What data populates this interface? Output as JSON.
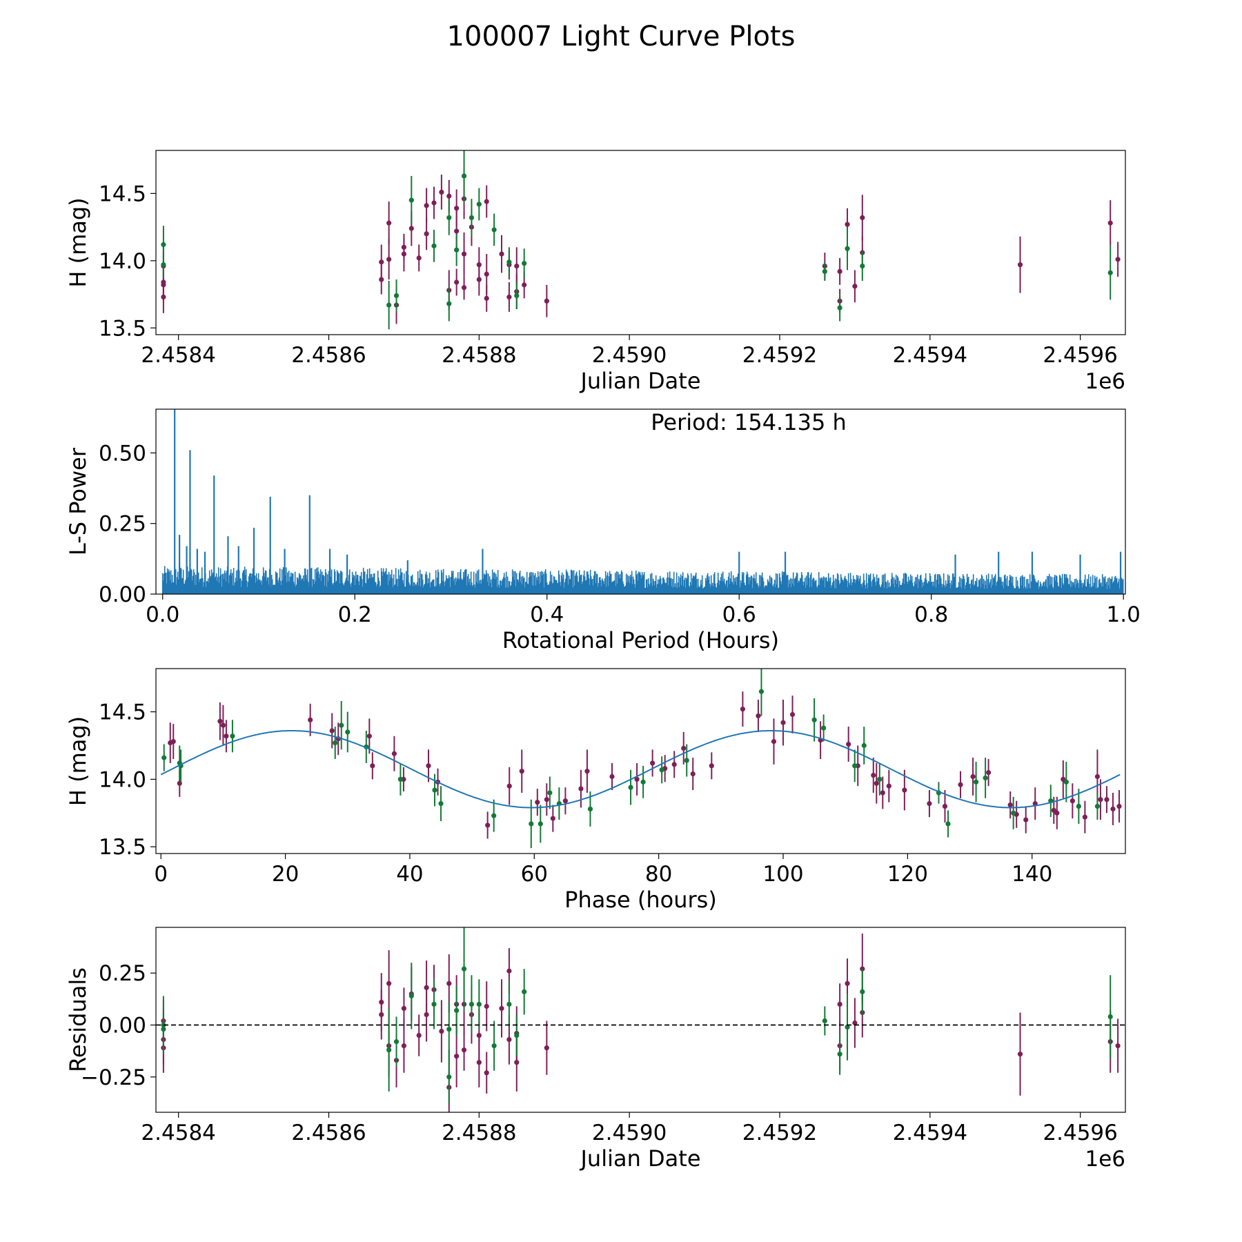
{
  "figure": {
    "title": "100007 Light Curve Plots",
    "colors": {
      "band_a": "#7f1f57",
      "band_b": "#137a36",
      "power": "#1f77b4",
      "fit": "#1f77b4",
      "zero_line": "#000000",
      "axes": "#000000"
    }
  },
  "chart_data": [
    {
      "id": "lightcurve",
      "type": "scatter",
      "title": "",
      "xlabel": "Julian Date",
      "ylabel": "H (mag)",
      "offset_label": "1e6",
      "xlim": [
        2.45837,
        2.45966
      ],
      "ylim": [
        13.45,
        14.82
      ],
      "xticks": [
        2.4584,
        2.4586,
        2.4588,
        2.459,
        2.4592,
        2.4594,
        2.4596
      ],
      "xtick_labels": [
        "2.4584",
        "2.4586",
        "2.4588",
        "2.4590",
        "2.4592",
        "2.4594",
        "2.4596"
      ],
      "yticks": [
        13.5,
        14.0,
        14.5
      ],
      "ytick_labels": [
        "13.5",
        "14.0",
        "14.5"
      ],
      "series": [
        {
          "name": "band_a",
          "x": [
            2.45838,
            2.45838,
            2.45838,
            2.45838,
            2.45867,
            2.45867,
            2.45868,
            2.45868,
            2.45869,
            2.4587,
            2.4587,
            2.45871,
            2.45872,
            2.45873,
            2.45873,
            2.45874,
            2.45875,
            2.45876,
            2.45876,
            2.45877,
            2.45877,
            2.45877,
            2.45878,
            2.45878,
            2.45878,
            2.45879,
            2.4588,
            2.4588,
            2.45881,
            2.45881,
            2.45881,
            2.45883,
            2.45884,
            2.45884,
            2.45885,
            2.45885,
            2.45886,
            2.45889,
            2.45926,
            2.45928,
            2.45928,
            2.45929,
            2.4593,
            2.45931,
            2.45931,
            2.45952,
            2.45964,
            2.45965
          ],
          "y": [
            13.96,
            13.73,
            13.84,
            13.82,
            13.99,
            13.86,
            14.28,
            14.01,
            13.67,
            14.1,
            14.05,
            14.24,
            14.02,
            14.2,
            14.41,
            14.43,
            14.51,
            14.48,
            13.78,
            14.39,
            14.22,
            13.84,
            14.46,
            14.05,
            13.8,
            14.25,
            13.97,
            13.86,
            14.44,
            13.72,
            13.9,
            14.05,
            13.97,
            13.73,
            13.77,
            13.96,
            13.82,
            13.7,
            13.96,
            13.92,
            13.7,
            14.27,
            13.81,
            14.32,
            14.06,
            13.97,
            14.28,
            14.01
          ],
          "err": [
            0.15,
            0.12,
            0.1,
            0.12,
            0.13,
            0.11,
            0.16,
            0.15,
            0.14,
            0.1,
            0.13,
            0.13,
            0.1,
            0.12,
            0.13,
            0.12,
            0.13,
            0.12,
            0.15,
            0.14,
            0.15,
            0.1,
            0.15,
            0.16,
            0.09,
            0.14,
            0.13,
            0.12,
            0.12,
            0.1,
            0.15,
            0.14,
            0.11,
            0.11,
            0.13,
            0.14,
            0.1,
            0.12,
            0.1,
            0.1,
            0.09,
            0.12,
            0.12,
            0.17,
            0.12,
            0.21,
            0.17,
            0.13
          ]
        },
        {
          "name": "band_b",
          "x": [
            2.45838,
            2.45838,
            2.45868,
            2.45869,
            2.45871,
            2.45874,
            2.45876,
            2.45876,
            2.45877,
            2.45878,
            2.45879,
            2.4588,
            2.45882,
            2.45884,
            2.45885,
            2.45886,
            2.45926,
            2.45928,
            2.45929,
            2.45931,
            2.45964
          ],
          "y": [
            14.12,
            13.97,
            13.67,
            13.74,
            14.45,
            14.11,
            14.32,
            13.68,
            14.08,
            14.63,
            14.32,
            14.42,
            14.23,
            13.99,
            13.74,
            13.98,
            13.92,
            13.65,
            14.09,
            13.96,
            13.91
          ],
          "err": [
            0.14,
            0.1,
            0.18,
            0.12,
            0.18,
            0.12,
            0.13,
            0.13,
            0.12,
            0.2,
            0.14,
            0.12,
            0.12,
            0.11,
            0.1,
            0.11,
            0.07,
            0.1,
            0.16,
            0.11,
            0.2
          ]
        }
      ]
    },
    {
      "id": "periodogram",
      "type": "line",
      "title": "",
      "xlabel": "Rotational Period (Hours)",
      "ylabel": "L-S Power",
      "annotation": "Period: 154.135 h",
      "xlim": [
        -0.007,
        1.002
      ],
      "ylim": [
        0.0,
        0.655
      ],
      "xticks": [
        0.0,
        0.2,
        0.4,
        0.6,
        0.8,
        1.0
      ],
      "xtick_labels": [
        "0.0",
        "0.2",
        "0.4",
        "0.6",
        "0.8",
        "1.0"
      ],
      "yticks": [
        0.0,
        0.25,
        0.5
      ],
      "ytick_labels": [
        "0.00",
        "0.25",
        "0.50"
      ],
      "series": [
        {
          "name": "L-S power",
          "baseline": {
            "x0": 0.0,
            "x1": 1.0,
            "start_level": 0.1,
            "end_level": 0.07
          },
          "peaks": [
            {
              "x": 0.0125,
              "y": 0.655
            },
            {
              "x": 0.0285,
              "y": 0.51
            },
            {
              "x": 0.0535,
              "y": 0.42
            },
            {
              "x": 0.112,
              "y": 0.345
            },
            {
              "x": 0.153,
              "y": 0.35
            },
            {
              "x": 0.095,
              "y": 0.235
            },
            {
              "x": 0.068,
              "y": 0.205
            },
            {
              "x": 0.0175,
              "y": 0.21
            },
            {
              "x": 0.025,
              "y": 0.17
            },
            {
              "x": 0.036,
              "y": 0.16
            },
            {
              "x": 0.044,
              "y": 0.15
            },
            {
              "x": 0.079,
              "y": 0.17
            },
            {
              "x": 0.127,
              "y": 0.16
            },
            {
              "x": 0.174,
              "y": 0.16
            },
            {
              "x": 0.192,
              "y": 0.14
            },
            {
              "x": 0.255,
              "y": 0.12
            },
            {
              "x": 0.333,
              "y": 0.16
            },
            {
              "x": 0.6,
              "y": 0.15
            },
            {
              "x": 0.648,
              "y": 0.15
            },
            {
              "x": 0.825,
              "y": 0.14
            },
            {
              "x": 0.87,
              "y": 0.15
            },
            {
              "x": 0.905,
              "y": 0.15
            },
            {
              "x": 0.955,
              "y": 0.14
            },
            {
              "x": 0.997,
              "y": 0.15
            }
          ]
        }
      ]
    },
    {
      "id": "phased",
      "type": "scatter",
      "title": "",
      "xlabel": "Phase (hours)",
      "ylabel": "H (mag)",
      "xlim": [
        -0.8,
        155.0
      ],
      "ylim": [
        13.45,
        14.82
      ],
      "xticks": [
        0,
        20,
        40,
        60,
        80,
        100,
        120,
        140
      ],
      "xtick_labels": [
        "0",
        "20",
        "40",
        "60",
        "80",
        "100",
        "120",
        "140"
      ],
      "yticks": [
        13.5,
        14.0,
        14.5
      ],
      "ytick_labels": [
        "13.5",
        "14.0",
        "14.5"
      ],
      "fit": {
        "mean": 14.075,
        "amplitude": 0.285,
        "period": 77.07,
        "peak_phase": 21.0,
        "x0": 0.0,
        "x1": 154.135
      },
      "series": [
        {
          "name": "band_a",
          "x": [
            1.5,
            2.0,
            3.0,
            9.5,
            10.0,
            10.5,
            24.0,
            27.5,
            28.5,
            33.5,
            34.0,
            37.5,
            39.0,
            43.0,
            44.5,
            52.5,
            56.0,
            58.0,
            60.5,
            62.0,
            63.0,
            65.0,
            67.5,
            68.5,
            72.5,
            76.5,
            79.0,
            81.0,
            82.5,
            84.0,
            85.5,
            88.5,
            93.5,
            96.0,
            98.5,
            100.0,
            101.5,
            106.0,
            110.5,
            112.0,
            114.5,
            115.0,
            116.0,
            117.0,
            119.5,
            123.5,
            126.0,
            128.5,
            130.5,
            133.0,
            136.5,
            137.5,
            139.0,
            140.5,
            143.5,
            144.0,
            145.0,
            146.5,
            148.5,
            150.5,
            151.0,
            152.0,
            153.0,
            154.0
          ],
          "y": [
            14.27,
            14.28,
            13.97,
            14.43,
            14.4,
            14.32,
            14.44,
            14.36,
            14.3,
            14.32,
            14.1,
            14.19,
            14.0,
            14.1,
            13.98,
            13.66,
            13.95,
            14.06,
            13.83,
            13.85,
            13.71,
            13.84,
            13.93,
            14.06,
            14.02,
            14.0,
            14.12,
            14.08,
            14.11,
            14.23,
            14.04,
            14.1,
            14.52,
            14.47,
            14.28,
            14.42,
            14.48,
            14.29,
            14.26,
            14.1,
            14.03,
            13.97,
            13.9,
            13.95,
            13.92,
            13.82,
            13.8,
            13.96,
            14.02,
            14.05,
            13.81,
            13.74,
            13.7,
            13.82,
            13.77,
            13.75,
            14.0,
            13.84,
            13.72,
            14.02,
            13.85,
            13.85,
            13.78,
            13.8
          ],
          "err": [
            0.15,
            0.13,
            0.1,
            0.14,
            0.15,
            0.12,
            0.12,
            0.13,
            0.12,
            0.13,
            0.1,
            0.13,
            0.09,
            0.12,
            0.1,
            0.1,
            0.14,
            0.16,
            0.1,
            0.12,
            0.1,
            0.1,
            0.14,
            0.16,
            0.1,
            0.12,
            0.1,
            0.1,
            0.1,
            0.12,
            0.12,
            0.1,
            0.13,
            0.12,
            0.17,
            0.17,
            0.14,
            0.14,
            0.13,
            0.15,
            0.13,
            0.15,
            0.12,
            0.12,
            0.15,
            0.1,
            0.12,
            0.1,
            0.14,
            0.1,
            0.1,
            0.1,
            0.1,
            0.12,
            0.1,
            0.12,
            0.14,
            0.13,
            0.12,
            0.2,
            0.15,
            0.1,
            0.12,
            0.12
          ]
        },
        {
          "name": "band_b",
          "x": [
            0.5,
            3.0,
            3.2,
            11.5,
            28.0,
            29.0,
            30.0,
            33.0,
            38.5,
            44.0,
            45.0,
            53.5,
            59.5,
            61.0,
            62.5,
            64.0,
            69.0,
            75.5,
            77.5,
            80.5,
            84.5,
            96.5,
            105.0,
            106.5,
            111.5,
            113.0,
            115.5,
            125.0,
            126.5,
            131.0,
            132.5,
            137.0,
            143.0,
            145.5,
            147.5,
            150.5
          ],
          "y": [
            14.16,
            14.12,
            14.1,
            14.32,
            14.27,
            14.4,
            14.35,
            14.24,
            14.0,
            13.92,
            13.82,
            13.73,
            13.67,
            13.67,
            13.9,
            13.82,
            13.78,
            13.94,
            13.98,
            14.07,
            14.14,
            14.65,
            14.44,
            14.38,
            14.1,
            14.25,
            14.0,
            13.9,
            13.67,
            13.98,
            14.01,
            13.75,
            13.84,
            13.98,
            13.8,
            13.8
          ],
          "err": [
            0.1,
            0.13,
            0.12,
            0.12,
            0.12,
            0.18,
            0.15,
            0.12,
            0.12,
            0.12,
            0.13,
            0.12,
            0.18,
            0.14,
            0.12,
            0.12,
            0.13,
            0.13,
            0.12,
            0.1,
            0.12,
            0.18,
            0.16,
            0.1,
            0.12,
            0.14,
            0.12,
            0.08,
            0.1,
            0.15,
            0.15,
            0.12,
            0.12,
            0.15,
            0.13,
            0.1
          ]
        }
      ]
    },
    {
      "id": "residuals",
      "type": "scatter",
      "title": "",
      "xlabel": "Julian Date",
      "ylabel": "Residuals",
      "offset_label": "1e6",
      "xlim": [
        2.45837,
        2.45966
      ],
      "ylim": [
        -0.42,
        0.47
      ],
      "zero_line": 0.0,
      "xticks": [
        2.4584,
        2.4586,
        2.4588,
        2.459,
        2.4592,
        2.4594,
        2.4596
      ],
      "xtick_labels": [
        "2.4584",
        "2.4586",
        "2.4588",
        "2.4590",
        "2.4592",
        "2.4594",
        "2.4596"
      ],
      "yticks": [
        -0.25,
        0.0,
        0.25
      ],
      "ytick_labels": [
        "−0.25",
        "0.00",
        "0.25"
      ],
      "series": [
        {
          "name": "band_a",
          "x": [
            2.45838,
            2.45838,
            2.45838,
            2.45867,
            2.45867,
            2.45868,
            2.45868,
            2.45869,
            2.4587,
            2.4587,
            2.45871,
            2.45872,
            2.45873,
            2.45873,
            2.45874,
            2.45875,
            2.45876,
            2.45876,
            2.45877,
            2.45877,
            2.45878,
            2.45878,
            2.45879,
            2.4588,
            2.4588,
            2.45881,
            2.45881,
            2.45883,
            2.45884,
            2.45884,
            2.45885,
            2.45885,
            2.45889,
            2.45928,
            2.45928,
            2.45929,
            2.4593,
            2.45931,
            2.45931,
            2.45952,
            2.45964,
            2.45965
          ],
          "y": [
            -0.07,
            -0.11,
            0.02,
            0.11,
            0.05,
            0.2,
            -0.1,
            -0.17,
            0.08,
            -0.1,
            0.15,
            -0.05,
            0.05,
            0.18,
            0.17,
            -0.03,
            0.2,
            -0.3,
            0.1,
            -0.15,
            0.1,
            -0.12,
            0.05,
            -0.05,
            -0.18,
            0.09,
            -0.23,
            0.08,
            -0.07,
            0.26,
            -0.04,
            -0.18,
            -0.11,
            0.1,
            -0.1,
            0.2,
            0.01,
            0.27,
            0.06,
            -0.14,
            -0.08,
            -0.1
          ],
          "err": [
            0.12,
            0.12,
            0.1,
            0.14,
            0.12,
            0.16,
            0.15,
            0.13,
            0.1,
            0.13,
            0.13,
            0.1,
            0.13,
            0.13,
            0.12,
            0.15,
            0.14,
            0.15,
            0.14,
            0.15,
            0.15,
            0.1,
            0.14,
            0.13,
            0.12,
            0.12,
            0.1,
            0.14,
            0.12,
            0.11,
            0.13,
            0.14,
            0.13,
            0.1,
            0.12,
            0.12,
            0.12,
            0.17,
            0.12,
            0.2,
            0.15,
            0.13
          ]
        },
        {
          "name": "band_b",
          "x": [
            2.45838,
            2.45838,
            2.45868,
            2.45869,
            2.45871,
            2.45874,
            2.45876,
            2.45876,
            2.45877,
            2.45878,
            2.45879,
            2.4588,
            2.45882,
            2.45884,
            2.45885,
            2.45886,
            2.45926,
            2.45928,
            2.45929,
            2.45931,
            2.45964
          ],
          "y": [
            0.0,
            -0.02,
            -0.12,
            -0.08,
            0.14,
            0.1,
            -0.02,
            -0.25,
            0.07,
            0.27,
            0.1,
            0.1,
            -0.1,
            0.1,
            -0.05,
            0.16,
            0.02,
            -0.14,
            -0.01,
            0.16,
            0.04
          ],
          "err": [
            0.14,
            0.1,
            0.2,
            0.12,
            0.16,
            0.12,
            0.13,
            0.13,
            0.12,
            0.2,
            0.14,
            0.12,
            0.12,
            0.11,
            0.1,
            0.11,
            0.07,
            0.1,
            0.16,
            0.11,
            0.2
          ]
        }
      ]
    }
  ]
}
